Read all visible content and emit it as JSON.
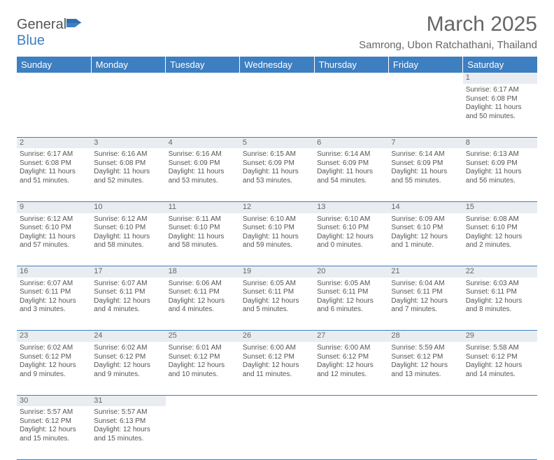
{
  "logo": {
    "textA": "General",
    "textB": "Blue"
  },
  "title": "March 2025",
  "location": "Samrong, Ubon Ratchathani, Thailand",
  "colors": {
    "header_bg": "#3d7fc1",
    "header_fg": "#ffffff",
    "strip_bg": "#e9edf1",
    "text": "#555555",
    "page_bg": "#ffffff"
  },
  "day_headers": [
    "Sunday",
    "Monday",
    "Tuesday",
    "Wednesday",
    "Thursday",
    "Friday",
    "Saturday"
  ],
  "weeks": [
    {
      "nums": [
        "",
        "",
        "",
        "",
        "",
        "",
        "1"
      ],
      "cells": [
        null,
        null,
        null,
        null,
        null,
        null,
        {
          "sunrise": "6:17 AM",
          "sunset": "6:08 PM",
          "daylight": "11 hours and 50 minutes."
        }
      ]
    },
    {
      "nums": [
        "2",
        "3",
        "4",
        "5",
        "6",
        "7",
        "8"
      ],
      "cells": [
        {
          "sunrise": "6:17 AM",
          "sunset": "6:08 PM",
          "daylight": "11 hours and 51 minutes."
        },
        {
          "sunrise": "6:16 AM",
          "sunset": "6:08 PM",
          "daylight": "11 hours and 52 minutes."
        },
        {
          "sunrise": "6:16 AM",
          "sunset": "6:09 PM",
          "daylight": "11 hours and 53 minutes."
        },
        {
          "sunrise": "6:15 AM",
          "sunset": "6:09 PM",
          "daylight": "11 hours and 53 minutes."
        },
        {
          "sunrise": "6:14 AM",
          "sunset": "6:09 PM",
          "daylight": "11 hours and 54 minutes."
        },
        {
          "sunrise": "6:14 AM",
          "sunset": "6:09 PM",
          "daylight": "11 hours and 55 minutes."
        },
        {
          "sunrise": "6:13 AM",
          "sunset": "6:09 PM",
          "daylight": "11 hours and 56 minutes."
        }
      ]
    },
    {
      "nums": [
        "9",
        "10",
        "11",
        "12",
        "13",
        "14",
        "15"
      ],
      "cells": [
        {
          "sunrise": "6:12 AM",
          "sunset": "6:10 PM",
          "daylight": "11 hours and 57 minutes."
        },
        {
          "sunrise": "6:12 AM",
          "sunset": "6:10 PM",
          "daylight": "11 hours and 58 minutes."
        },
        {
          "sunrise": "6:11 AM",
          "sunset": "6:10 PM",
          "daylight": "11 hours and 58 minutes."
        },
        {
          "sunrise": "6:10 AM",
          "sunset": "6:10 PM",
          "daylight": "11 hours and 59 minutes."
        },
        {
          "sunrise": "6:10 AM",
          "sunset": "6:10 PM",
          "daylight": "12 hours and 0 minutes."
        },
        {
          "sunrise": "6:09 AM",
          "sunset": "6:10 PM",
          "daylight": "12 hours and 1 minute."
        },
        {
          "sunrise": "6:08 AM",
          "sunset": "6:10 PM",
          "daylight": "12 hours and 2 minutes."
        }
      ]
    },
    {
      "nums": [
        "16",
        "17",
        "18",
        "19",
        "20",
        "21",
        "22"
      ],
      "cells": [
        {
          "sunrise": "6:07 AM",
          "sunset": "6:11 PM",
          "daylight": "12 hours and 3 minutes."
        },
        {
          "sunrise": "6:07 AM",
          "sunset": "6:11 PM",
          "daylight": "12 hours and 4 minutes."
        },
        {
          "sunrise": "6:06 AM",
          "sunset": "6:11 PM",
          "daylight": "12 hours and 4 minutes."
        },
        {
          "sunrise": "6:05 AM",
          "sunset": "6:11 PM",
          "daylight": "12 hours and 5 minutes."
        },
        {
          "sunrise": "6:05 AM",
          "sunset": "6:11 PM",
          "daylight": "12 hours and 6 minutes."
        },
        {
          "sunrise": "6:04 AM",
          "sunset": "6:11 PM",
          "daylight": "12 hours and 7 minutes."
        },
        {
          "sunrise": "6:03 AM",
          "sunset": "6:11 PM",
          "daylight": "12 hours and 8 minutes."
        }
      ]
    },
    {
      "nums": [
        "23",
        "24",
        "25",
        "26",
        "27",
        "28",
        "29"
      ],
      "cells": [
        {
          "sunrise": "6:02 AM",
          "sunset": "6:12 PM",
          "daylight": "12 hours and 9 minutes."
        },
        {
          "sunrise": "6:02 AM",
          "sunset": "6:12 PM",
          "daylight": "12 hours and 9 minutes."
        },
        {
          "sunrise": "6:01 AM",
          "sunset": "6:12 PM",
          "daylight": "12 hours and 10 minutes."
        },
        {
          "sunrise": "6:00 AM",
          "sunset": "6:12 PM",
          "daylight": "12 hours and 11 minutes."
        },
        {
          "sunrise": "6:00 AM",
          "sunset": "6:12 PM",
          "daylight": "12 hours and 12 minutes."
        },
        {
          "sunrise": "5:59 AM",
          "sunset": "6:12 PM",
          "daylight": "12 hours and 13 minutes."
        },
        {
          "sunrise": "5:58 AM",
          "sunset": "6:12 PM",
          "daylight": "12 hours and 14 minutes."
        }
      ]
    },
    {
      "nums": [
        "30",
        "31",
        "",
        "",
        "",
        "",
        ""
      ],
      "cells": [
        {
          "sunrise": "5:57 AM",
          "sunset": "6:12 PM",
          "daylight": "12 hours and 15 minutes."
        },
        {
          "sunrise": "5:57 AM",
          "sunset": "6:13 PM",
          "daylight": "12 hours and 15 minutes."
        },
        null,
        null,
        null,
        null,
        null
      ]
    }
  ],
  "labels": {
    "sunrise": "Sunrise:",
    "sunset": "Sunset:",
    "daylight": "Daylight:"
  }
}
